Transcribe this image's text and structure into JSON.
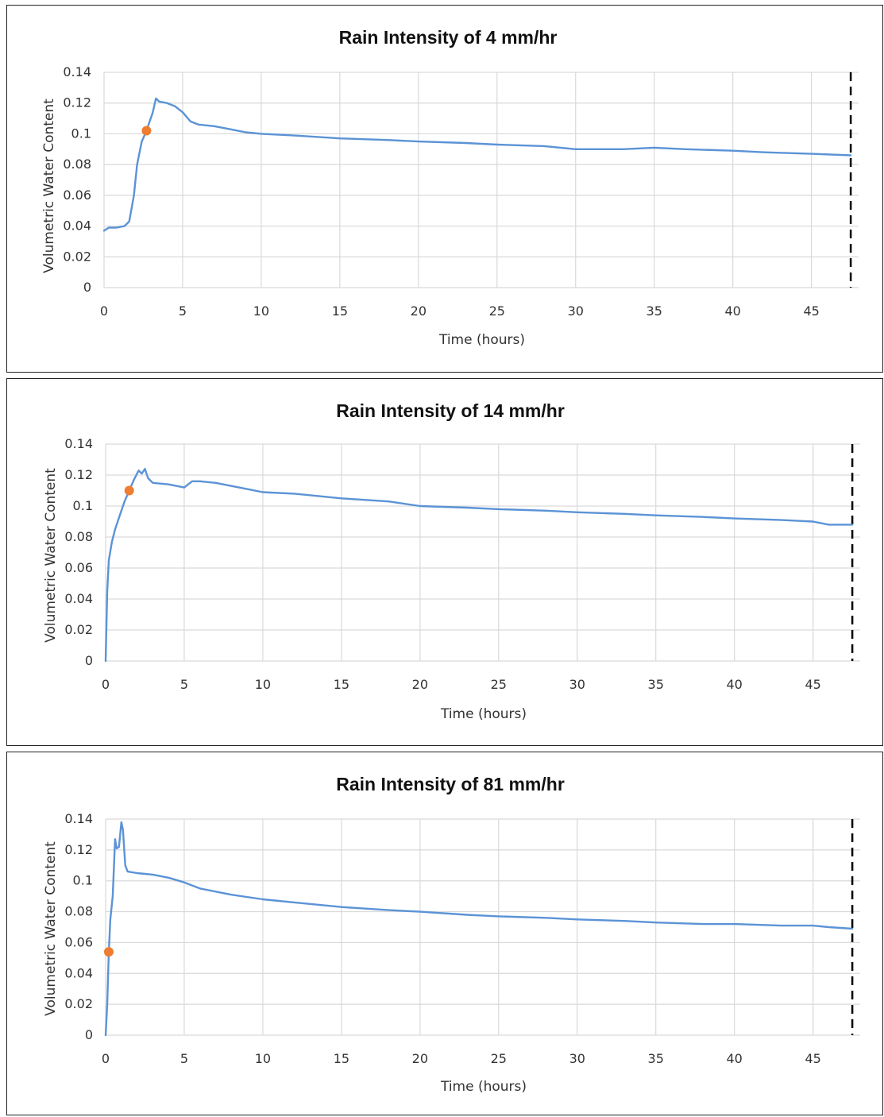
{
  "colors": {
    "series": "#5b93d6",
    "marker": "#ee7d31",
    "grid": "#d9d9d9",
    "dashed": "#000000"
  },
  "chart_data": [
    {
      "type": "line",
      "title": "Rain Intensity of 4 mm/hr",
      "xlabel": "Time (hours)",
      "ylabel": "Volumetric Water Content",
      "xlim": [
        0,
        48
      ],
      "ylim": [
        0,
        0.14
      ],
      "xticks": [
        0,
        5,
        10,
        15,
        20,
        25,
        30,
        35,
        40,
        45
      ],
      "yticks": [
        0,
        0.02,
        0.04,
        0.06,
        0.08,
        0.1,
        0.12,
        0.14
      ],
      "ytick_labels": [
        "0",
        "0.02",
        "0.04",
        "0.06",
        "0.08",
        "0.1",
        "0.12",
        "0.14"
      ],
      "grid": true,
      "vertical_dashed_line_x": 47.5,
      "series": [
        {
          "x": [
            0,
            0.3,
            0.8,
            1.3,
            1.6,
            1.9,
            2.1,
            2.4,
            2.7,
            2.9,
            3.1,
            3.3,
            3.5,
            4.0,
            4.5,
            5.0,
            5.5,
            6.0,
            7.0,
            8.0,
            9.0,
            10.0,
            12.0,
            15.0,
            18.0,
            20.0,
            23.0,
            25.0,
            28.0,
            30.0,
            33.0,
            35.0,
            37.0,
            40.0,
            42.0,
            45.0,
            47.5
          ],
          "y": [
            0.037,
            0.039,
            0.039,
            0.04,
            0.043,
            0.06,
            0.08,
            0.095,
            0.102,
            0.108,
            0.114,
            0.123,
            0.121,
            0.12,
            0.118,
            0.114,
            0.108,
            0.106,
            0.105,
            0.103,
            0.101,
            0.1,
            0.099,
            0.097,
            0.096,
            0.095,
            0.094,
            0.093,
            0.092,
            0.09,
            0.09,
            0.091,
            0.09,
            0.089,
            0.088,
            0.087,
            0.086
          ]
        }
      ],
      "markers": [
        {
          "x": 2.7,
          "y": 0.102
        }
      ]
    },
    {
      "type": "line",
      "title": "Rain Intensity of 14 mm/hr",
      "xlabel": "Time (hours)",
      "ylabel": "Volumetric Water Content",
      "xlim": [
        0,
        48
      ],
      "ylim": [
        0,
        0.14
      ],
      "xticks": [
        0,
        5,
        10,
        15,
        20,
        25,
        30,
        35,
        40,
        45
      ],
      "yticks": [
        0,
        0.02,
        0.04,
        0.06,
        0.08,
        0.1,
        0.12,
        0.14
      ],
      "ytick_labels": [
        "0",
        "0.02",
        "0.04",
        "0.06",
        "0.08",
        "0.1",
        "0.12",
        "0.14"
      ],
      "grid": true,
      "vertical_dashed_line_x": 47.5,
      "series": [
        {
          "x": [
            0,
            0.1,
            0.2,
            0.4,
            0.6,
            0.9,
            1.2,
            1.5,
            1.8,
            2.1,
            2.3,
            2.5,
            2.7,
            3.0,
            4.0,
            5.0,
            5.5,
            6.0,
            7.0,
            8.0,
            9.0,
            10.0,
            12.0,
            15.0,
            18.0,
            20.0,
            23.0,
            25.0,
            28.0,
            30.0,
            33.0,
            35.0,
            38.0,
            40.0,
            43.0,
            45.0,
            46.0,
            47.5
          ],
          "y": [
            0,
            0.045,
            0.065,
            0.077,
            0.085,
            0.094,
            0.103,
            0.11,
            0.117,
            0.123,
            0.121,
            0.124,
            0.118,
            0.115,
            0.114,
            0.112,
            0.116,
            0.116,
            0.115,
            0.113,
            0.111,
            0.109,
            0.108,
            0.105,
            0.103,
            0.1,
            0.099,
            0.098,
            0.097,
            0.096,
            0.095,
            0.094,
            0.093,
            0.092,
            0.091,
            0.09,
            0.088,
            0.088
          ]
        }
      ],
      "markers": [
        {
          "x": 1.5,
          "y": 0.11
        }
      ]
    },
    {
      "type": "line",
      "title": "Rain Intensity of 81 mm/hr",
      "xlabel": "Time (hours)",
      "ylabel": "Volumetric Water Content",
      "xlim": [
        0,
        48
      ],
      "ylim": [
        0,
        0.14
      ],
      "xticks": [
        0,
        5,
        10,
        15,
        20,
        25,
        30,
        35,
        40,
        45
      ],
      "yticks": [
        0,
        0.02,
        0.04,
        0.06,
        0.08,
        0.1,
        0.12,
        0.14
      ],
      "ytick_labels": [
        "0",
        "0.02",
        "0.04",
        "0.06",
        "0.08",
        "0.1",
        "0.12",
        "0.14"
      ],
      "grid": true,
      "vertical_dashed_line_x": 47.5,
      "series": [
        {
          "x": [
            0,
            0.1,
            0.2,
            0.3,
            0.45,
            0.6,
            0.7,
            0.85,
            1.0,
            1.1,
            1.25,
            1.4,
            2.0,
            3.0,
            4.0,
            5.0,
            6.0,
            8.0,
            10.0,
            12.0,
            15.0,
            18.0,
            20.0,
            23.0,
            25.0,
            28.0,
            30.0,
            33.0,
            35.0,
            38.0,
            40.0,
            43.0,
            45.0,
            46.0,
            47.5
          ],
          "y": [
            0,
            0.02,
            0.054,
            0.075,
            0.09,
            0.127,
            0.121,
            0.122,
            0.138,
            0.133,
            0.11,
            0.106,
            0.105,
            0.104,
            0.102,
            0.099,
            0.095,
            0.091,
            0.088,
            0.086,
            0.083,
            0.081,
            0.08,
            0.078,
            0.077,
            0.076,
            0.075,
            0.074,
            0.073,
            0.072,
            0.072,
            0.071,
            0.071,
            0.07,
            0.069
          ]
        }
      ],
      "markers": [
        {
          "x": 0.2,
          "y": 0.054
        }
      ]
    }
  ]
}
